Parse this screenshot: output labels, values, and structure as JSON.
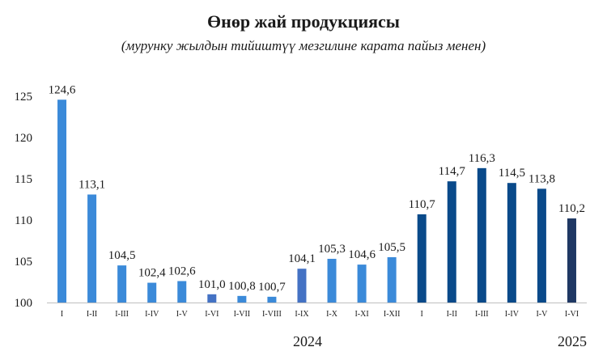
{
  "chart_data": {
    "type": "bar",
    "title": "Өнөр жай продукциясы",
    "subtitle": "(мурунку жылдын тийиштүү мезгилине карата пайыз менен)",
    "categories": [
      "I",
      "I-II",
      "I-III",
      "I-IV",
      "I-V",
      "I-VI",
      "I-VII",
      "I-VIII",
      "I-IX",
      "I-X",
      "I-XI",
      "I-XII",
      "I",
      "I-II",
      "I-III",
      "I-IV",
      "I-V",
      "I-VI"
    ],
    "values": [
      124.6,
      113.1,
      104.5,
      102.4,
      102.6,
      101.0,
      100.8,
      100.7,
      104.1,
      105.3,
      104.6,
      105.5,
      110.7,
      114.7,
      116.3,
      114.5,
      113.8,
      110.2
    ],
    "value_labels": [
      "124,6",
      "113,1",
      "104,5",
      "102,4",
      "102,6",
      "101,0",
      "100,8",
      "100,7",
      "104,1",
      "105,3",
      "104,6",
      "105,5",
      "110,7",
      "114,7",
      "116,3",
      "114,5",
      "113,8",
      "110,2"
    ],
    "bar_colors": [
      "#3b8ad9",
      "#3b8ad9",
      "#3b8ad9",
      "#3b8ad9",
      "#3b8ad9",
      "#4472c4",
      "#3b8ad9",
      "#3b8ad9",
      "#4472c4",
      "#3b8ad9",
      "#3b8ad9",
      "#3b8ad9",
      "#0a4a8a",
      "#0a4a8a",
      "#0a4a8a",
      "#0a4a8a",
      "#0a4a8a",
      "#1f3864"
    ],
    "groups": [
      {
        "label": "2024"
      },
      {
        "label": "2025"
      }
    ],
    "yticks": [
      100,
      105,
      110,
      115,
      120,
      125
    ],
    "ylim": [
      100,
      125.9
    ],
    "grid": false,
    "legend": "none"
  }
}
